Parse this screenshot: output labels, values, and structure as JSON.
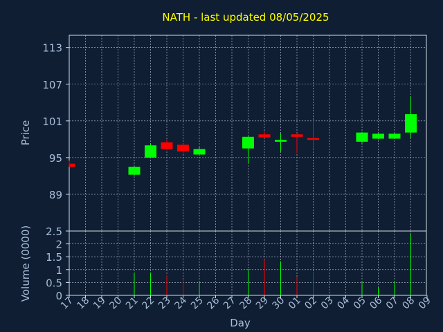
{
  "colors": {
    "background": "#0f1e32",
    "title": "#ffff00",
    "axis_text": "#a9bfd9",
    "grid": "#c8d0dc",
    "up": "#00ff00",
    "down": "#ff0000"
  },
  "chart_data": [
    {
      "type": "candlestick",
      "title": "NATH - last updated 08/05/2025",
      "ylabel": "Price",
      "yticks": [
        89,
        95,
        101,
        107,
        113
      ],
      "ylim": [
        83,
        115
      ],
      "x_tick_labels": [
        "17",
        "18",
        "19",
        "20",
        "21",
        "22",
        "23",
        "24",
        "25",
        "26",
        "27",
        "28",
        "29",
        "30",
        "01",
        "02",
        "03",
        "04",
        "05",
        "06",
        "07",
        "08",
        "09"
      ],
      "grid": true,
      "candles": [
        {
          "day": "17",
          "open": 94.0,
          "high": 94.5,
          "low": 93.5,
          "close": 93.5
        },
        {
          "day": "21",
          "open": 92.2,
          "high": 93.5,
          "low": 92.0,
          "close": 93.5
        },
        {
          "day": "22",
          "open": 95.0,
          "high": 97.3,
          "low": 95.0,
          "close": 97.0
        },
        {
          "day": "23",
          "open": 97.5,
          "high": 98.0,
          "low": 96.2,
          "close": 96.4
        },
        {
          "day": "24",
          "open": 97.1,
          "high": 97.3,
          "low": 95.6,
          "close": 96.0
        },
        {
          "day": "25",
          "open": 95.5,
          "high": 96.8,
          "low": 95.5,
          "close": 96.4
        },
        {
          "day": "28",
          "open": 96.5,
          "high": 98.5,
          "low": 94.0,
          "close": 98.4
        },
        {
          "day": "29",
          "open": 98.8,
          "high": 99.3,
          "low": 98.2,
          "close": 98.3
        },
        {
          "day": "30",
          "open": 97.6,
          "high": 99.0,
          "low": 96.0,
          "close": 97.9
        },
        {
          "day": "01",
          "open": 98.8,
          "high": 98.9,
          "low": 95.7,
          "close": 98.4
        },
        {
          "day": "02",
          "open": 98.2,
          "high": 101.0,
          "low": 96.4,
          "close": 97.9
        },
        {
          "day": "05",
          "open": 97.6,
          "high": 99.2,
          "low": 97.3,
          "close": 99.1
        },
        {
          "day": "06",
          "open": 98.1,
          "high": 99.0,
          "low": 98.0,
          "close": 98.9
        },
        {
          "day": "07",
          "open": 98.1,
          "high": 99.0,
          "low": 98.1,
          "close": 98.9
        },
        {
          "day": "08",
          "open": 99.1,
          "high": 105.0,
          "low": 98.2,
          "close": 102.1
        }
      ]
    },
    {
      "type": "bar",
      "ylabel": "Volume (0000)",
      "xlabel": "Day",
      "yticks": [
        0,
        0.5,
        1,
        1.5,
        2,
        2.5
      ],
      "ylim": [
        0,
        2.5
      ],
      "x_tick_labels": [
        "17",
        "18",
        "19",
        "20",
        "21",
        "22",
        "23",
        "24",
        "25",
        "26",
        "27",
        "28",
        "29",
        "30",
        "01",
        "02",
        "03",
        "04",
        "05",
        "06",
        "07",
        "08",
        "09"
      ],
      "grid": true,
      "bars": [
        {
          "day": "21",
          "value": 0.88,
          "direction": "up"
        },
        {
          "day": "22",
          "value": 0.88,
          "direction": "up"
        },
        {
          "day": "23",
          "value": 0.78,
          "direction": "down"
        },
        {
          "day": "24",
          "value": 0.62,
          "direction": "down"
        },
        {
          "day": "25",
          "value": 0.5,
          "direction": "up"
        },
        {
          "day": "28",
          "value": 1.02,
          "direction": "up"
        },
        {
          "day": "29",
          "value": 1.38,
          "direction": "down"
        },
        {
          "day": "30",
          "value": 1.32,
          "direction": "up"
        },
        {
          "day": "01",
          "value": 0.72,
          "direction": "down"
        },
        {
          "day": "02",
          "value": 0.9,
          "direction": "down"
        },
        {
          "day": "05",
          "value": 0.55,
          "direction": "up"
        },
        {
          "day": "06",
          "value": 0.32,
          "direction": "up"
        },
        {
          "day": "07",
          "value": 0.55,
          "direction": "up"
        },
        {
          "day": "08",
          "value": 2.42,
          "direction": "up"
        }
      ]
    }
  ]
}
